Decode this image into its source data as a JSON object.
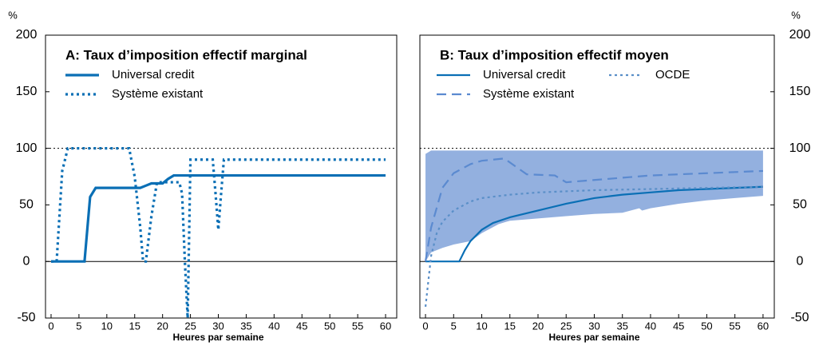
{
  "chart_data": [
    {
      "type": "line",
      "title": "A: Taux d’imposition effectif marginal",
      "x_label": "Heures par semaine",
      "y_label": "%",
      "xlim": [
        -1,
        62
      ],
      "xticks": [
        0,
        5,
        10,
        15,
        20,
        25,
        30,
        35,
        40,
        45,
        50,
        55,
        60
      ],
      "ylim": [
        -50,
        200
      ],
      "yticks": [
        -50,
        0,
        50,
        100,
        150,
        200
      ],
      "hlines": [
        0,
        100
      ],
      "series": [
        {
          "name": "Universal credit",
          "color": "#0a6fb5",
          "style": "solid",
          "x": [
            0,
            6,
            7,
            8,
            16,
            17,
            18,
            20,
            21,
            22,
            60
          ],
          "values": [
            0,
            0,
            57,
            65,
            65,
            67,
            69,
            69,
            73,
            76,
            76
          ]
        },
        {
          "name": "Système existant",
          "color": "#0a6fb5",
          "style": "dotted",
          "x": [
            0,
            1,
            2,
            3,
            14,
            15,
            16,
            16.5,
            17,
            18,
            19,
            23,
            23.5,
            24,
            24.5,
            25,
            29,
            29.5,
            30,
            30.5,
            31,
            60
          ],
          "values": [
            0,
            0,
            80,
            100,
            100,
            75,
            30,
            0,
            0,
            40,
            70,
            70,
            60,
            0,
            -50,
            90,
            90,
            60,
            28,
            60,
            90,
            90
          ]
        }
      ]
    },
    {
      "type": "line",
      "title": "B: Taux d’imposition effectif moyen",
      "x_label": "Heures par semaine",
      "y_label": "%",
      "xlim": [
        -1,
        62
      ],
      "xticks": [
        0,
        5,
        10,
        15,
        20,
        25,
        30,
        35,
        40,
        45,
        50,
        55,
        60
      ],
      "ylim": [
        -50,
        200
      ],
      "yticks": [
        -50,
        0,
        50,
        100,
        150,
        200
      ],
      "hlines": [
        0,
        100
      ],
      "band": {
        "color": "#93b0df",
        "x": [
          0,
          1,
          3,
          5,
          8,
          10,
          13,
          15,
          20,
          25,
          30,
          35,
          38,
          38.5,
          40,
          45,
          50,
          55,
          60
        ],
        "lower": [
          0,
          8,
          12,
          15,
          18,
          25,
          33,
          36,
          38,
          40,
          42,
          43,
          47,
          45,
          47,
          51,
          54,
          56,
          58
        ],
        "upper": [
          95,
          98,
          98,
          98,
          98,
          98,
          98,
          98,
          98,
          98,
          98,
          98,
          98,
          98,
          98,
          98,
          98,
          98,
          98
        ]
      },
      "series": [
        {
          "name": "Universal credit",
          "color": "#0a6fb5",
          "style": "solid",
          "x": [
            0,
            6,
            7,
            8,
            10,
            12,
            15,
            20,
            25,
            30,
            35,
            40,
            45,
            50,
            55,
            60
          ],
          "values": [
            0,
            0,
            10,
            18,
            28,
            34,
            39,
            45,
            51,
            56,
            59,
            61,
            63,
            64,
            65,
            66
          ]
        },
        {
          "name": "OCDE",
          "color": "#5a8fc8",
          "style": "dotted",
          "x": [
            0,
            1,
            2,
            3,
            5,
            8,
            10,
            15,
            20,
            30,
            40,
            50,
            60
          ],
          "values": [
            -40,
            5,
            25,
            35,
            45,
            53,
            56,
            59,
            61,
            63,
            64,
            65,
            66
          ]
        },
        {
          "name": "Système existant",
          "color": "#5b8ad0",
          "style": "dashed",
          "x": [
            0,
            1,
            3,
            5,
            8,
            10,
            14,
            16,
            18,
            23,
            25,
            30,
            40,
            50,
            60
          ],
          "values": [
            0,
            30,
            65,
            78,
            86,
            89,
            91,
            84,
            77,
            76,
            70,
            72,
            76,
            78,
            80
          ]
        }
      ]
    }
  ]
}
